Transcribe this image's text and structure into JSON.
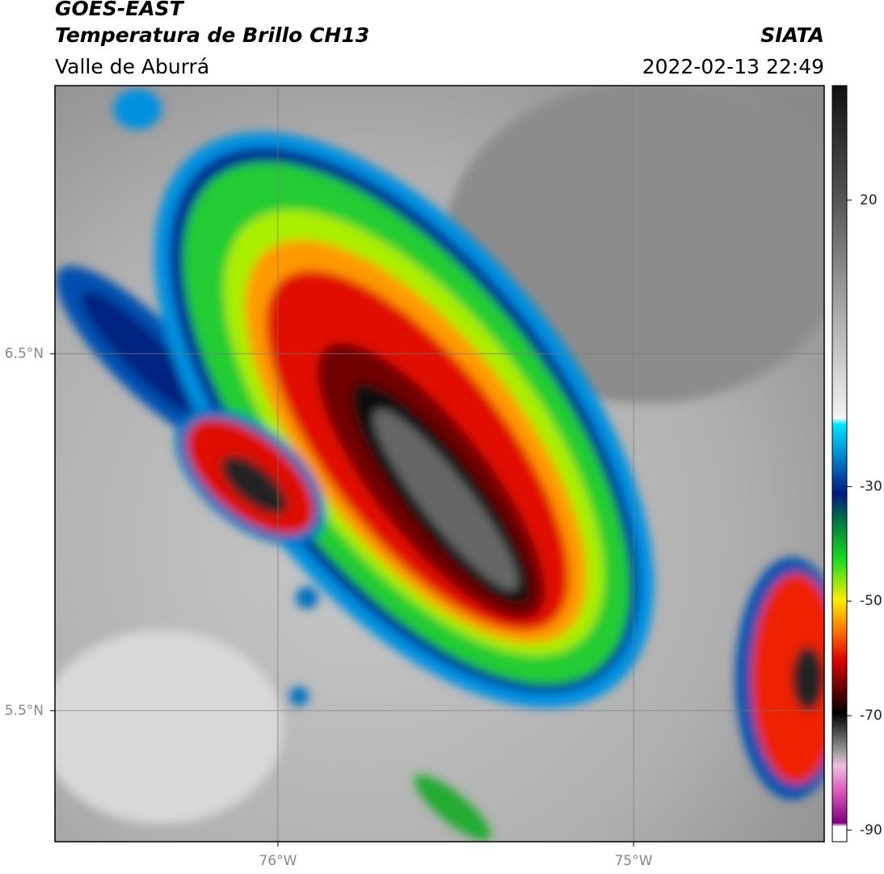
{
  "header": {
    "title": "GOES-EAST",
    "subtitle": "Temperatura de Brillo CH13",
    "region": "Valle de Aburrá",
    "source": "SIATA",
    "datetime": "2022-02-13 22:49"
  },
  "map": {
    "xlim": [
      -76.627,
      -74.464
    ],
    "ylim": [
      5.133,
      7.251
    ],
    "xticks": [
      {
        "value": -76,
        "label": "76°W"
      },
      {
        "value": -75,
        "label": "75°W"
      }
    ],
    "yticks": [
      {
        "value": 6.5,
        "label": "6.5°N"
      },
      {
        "value": 5.5,
        "label": "5.5°N"
      }
    ]
  },
  "colorbar": {
    "lim": [
      -92,
      40
    ],
    "ticks": [
      20,
      -30,
      -50,
      -70,
      -90
    ]
  }
}
